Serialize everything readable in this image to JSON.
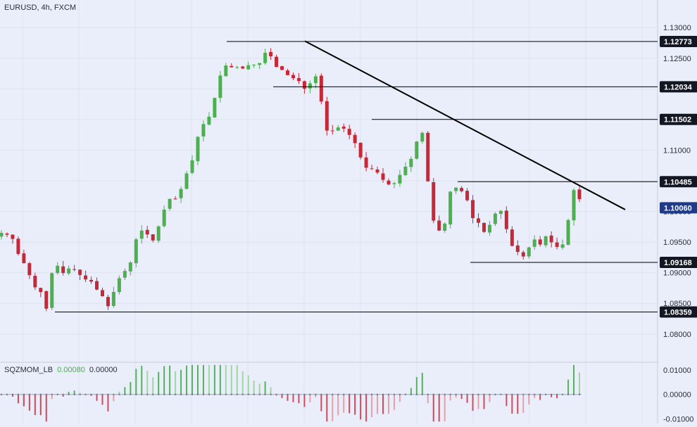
{
  "symbol": "EURUSD, 4h, FXCM",
  "indicator": {
    "name": "SQZMOM_LB",
    "value1": "0.00080",
    "value2": "0.00000"
  },
  "colors": {
    "background": "#eaeefa",
    "up": "#4caf50",
    "down": "#c62838",
    "line": "#000000",
    "current": "#1e3a8a"
  },
  "chart_data": {
    "type": "candlestick",
    "price_axis": {
      "ticks": [
        "1.13000",
        "1.12500",
        "1.12000",
        "1.11500",
        "1.11000",
        "1.10500",
        "1.10000",
        "1.09500",
        "1.09000",
        "1.08500",
        "1.08000"
      ],
      "range": [
        1.0755,
        1.1345
      ]
    },
    "levels": [
      {
        "label": "1.12773",
        "value": 1.12773
      },
      {
        "label": "1.12034",
        "value": 1.12034
      },
      {
        "label": "1.11502",
        "value": 1.11502
      },
      {
        "label": "1.10485",
        "value": 1.10485
      },
      {
        "label": "1.09168",
        "value": 1.09168
      },
      {
        "label": "1.08359",
        "value": 1.08359
      }
    ],
    "current_price": {
      "label": "1.10060",
      "value": 1.1006
    },
    "trendline": {
      "from": 1.1278,
      "to": 1.1003
    },
    "price_path": [
      1.0965,
      1.0962,
      1.0955,
      1.093,
      1.0915,
      1.0895,
      1.0875,
      1.0868,
      1.0839,
      1.0905,
      1.0912,
      1.0898,
      1.0908,
      1.0905,
      1.0895,
      1.0888,
      1.0885,
      1.087,
      1.086,
      1.0842,
      1.0875,
      1.0895,
      1.0905,
      1.092,
      1.0965,
      1.097,
      1.096,
      1.095,
      1.0985,
      1.101,
      1.1025,
      1.1018,
      1.1045,
      1.107,
      1.109,
      1.1138,
      1.1145,
      1.116,
      1.12,
      1.1235,
      1.124,
      1.1232,
      1.1238,
      1.123,
      1.1245,
      1.1235,
      1.1248,
      1.1268,
      1.124,
      1.1232,
      1.123,
      1.1215,
      1.122,
      1.1205,
      1.1195,
      1.1225,
      1.1215,
      1.1135,
      1.1128,
      1.1135,
      1.114,
      1.1128,
      1.112,
      1.1098,
      1.1072,
      1.107,
      1.1068,
      1.1055,
      1.1045,
      1.1042,
      1.1055,
      1.107,
      1.108,
      1.11,
      1.115,
      1.107,
      1.099,
      1.097,
      1.0965,
      1.103,
      1.104,
      1.1035,
      1.1025,
      1.099,
      1.0985,
      1.0965,
      1.0975,
      1.0995,
      1.1005,
      1.0975,
      1.0945,
      1.0935,
      1.0925,
      1.094,
      1.0955,
      1.0945,
      1.096,
      1.095,
      1.0942,
      1.0945,
      1.0985,
      1.1035,
      1.102
    ]
  },
  "momentum": {
    "ticks": [
      "0.01000",
      "0.00000",
      "-0.01000"
    ],
    "range": [
      -0.0118,
      0.0128
    ]
  }
}
